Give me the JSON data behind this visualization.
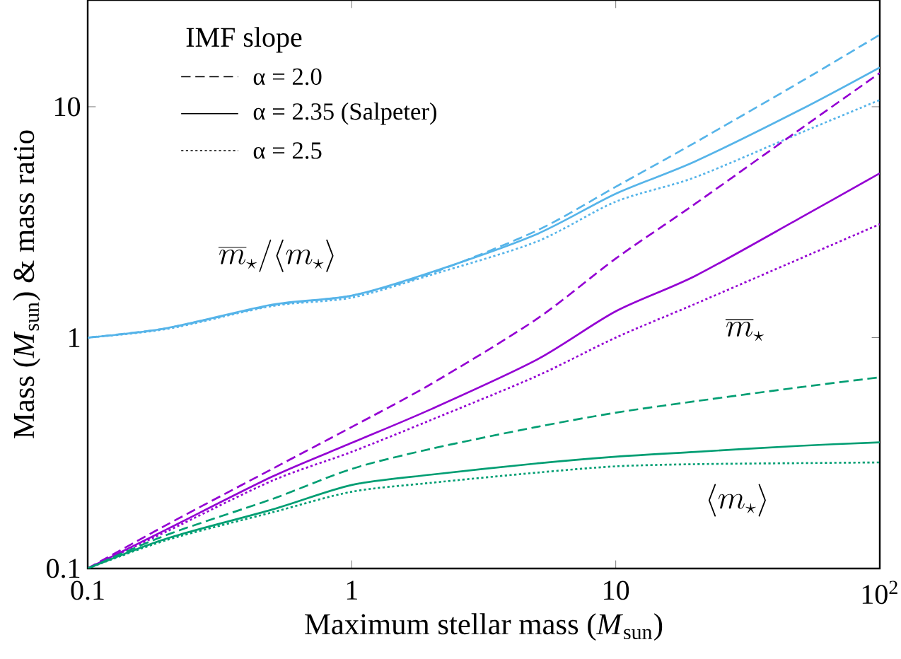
{
  "chart_data": {
    "type": "line",
    "xlabel": "Maximum stellar mass (*M*$_{sun}$)",
    "ylabel": "Mass  (*M*$_{sun}$) & mass ratio",
    "log": "xy",
    "legend_title": "IMF slope",
    "xlim": [
      0.1,
      100
    ],
    "ylim": [
      0.1,
      29
    ],
    "xticks": [
      0.1,
      1,
      10,
      {
        "value": 100,
        "label": "10$^{2}$"
      }
    ],
    "yticks": [
      0.1,
      1,
      10
    ],
    "x": [
      0.1,
      0.2,
      0.5,
      1,
      2,
      5,
      10,
      20,
      50,
      100
    ],
    "series": [
      {
        "color": "#56b4e9",
        "line_style": "dashed",
        "values": [
          1,
          1.1,
          1.38,
          1.52,
          1.9,
          2.9,
          4.5,
          7.0,
          12.8,
          20.5
        ]
      },
      {
        "color": "#56b4e9",
        "line_style": "solid",
        "values": [
          1,
          1.1,
          1.39,
          1.52,
          1.92,
          2.8,
          4.2,
          5.8,
          9.7,
          14.8
        ]
      },
      {
        "color": "#56b4e9",
        "line_style": "dotted",
        "values": [
          1,
          1.09,
          1.37,
          1.49,
          1.87,
          2.6,
          3.88,
          4.95,
          7.7,
          10.7
        ]
      },
      {
        "color": "#9400d3",
        "line_style": "dashed",
        "values": [
          0.1,
          0.155,
          0.27,
          0.41,
          0.63,
          1.2,
          2.2,
          3.8,
          8.0,
          14
        ]
      },
      {
        "color": "#9400d3",
        "line_style": "solid",
        "values": [
          0.1,
          0.148,
          0.25,
          0.35,
          0.49,
          0.8,
          1.3,
          1.85,
          3.3,
          5.15
        ]
      },
      {
        "color": "#9400d3",
        "line_style": "dotted",
        "values": [
          0.1,
          0.145,
          0.24,
          0.32,
          0.44,
          0.68,
          1.0,
          1.4,
          2.2,
          3.1
        ]
      },
      {
        "color": "#009e73",
        "line_style": "dashed",
        "values": [
          0.1,
          0.14,
          0.2,
          0.27,
          0.33,
          0.41,
          0.473,
          0.53,
          0.61,
          0.673
        ]
      },
      {
        "color": "#009e73",
        "line_style": "solid",
        "values": [
          0.1,
          0.135,
          0.18,
          0.23,
          0.255,
          0.285,
          0.305,
          0.32,
          0.34,
          0.352
        ]
      },
      {
        "color": "#009e73",
        "line_style": "dotted",
        "values": [
          0.1,
          0.133,
          0.175,
          0.215,
          0.235,
          0.26,
          0.277,
          0.283,
          0.286,
          0.288
        ]
      }
    ],
    "annotations": [
      "α = 2.0",
      "α = 2.35 (Salpeter)",
      "α = 2.5",
      "\\overline{m}_\\star/\\langle m_\\star\\rangle",
      "\\overline{m}_\\star",
      "\\langle m_\\star\\rangle"
    ]
  }
}
